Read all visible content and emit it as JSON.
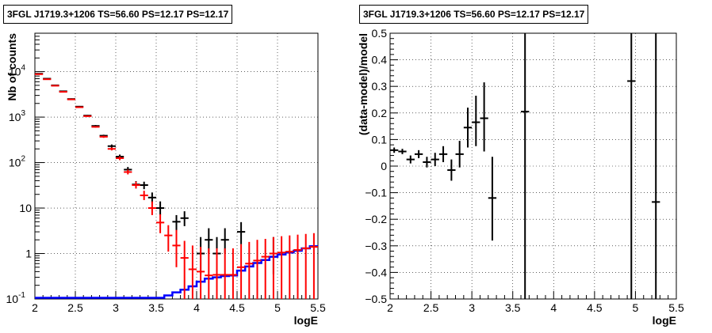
{
  "left_panel": {
    "title": "3FGL J1719.3+1206 TS=56.60 PS=12.17 PS=12.17"
  },
  "right_panel": {
    "title": "3FGL J1719.3+1206 TS=56.60 PS=12.17 PS=12.17"
  },
  "chart_data": [
    {
      "type": "scatter",
      "xlabel": "logE",
      "ylabel": "Nb of counts",
      "xlim": [
        2,
        5.5
      ],
      "ylim": [
        0.1,
        70000
      ],
      "yscale": "log",
      "grid": true,
      "xticks": [
        "2",
        "2.5",
        "3",
        "3.5",
        "4",
        "4.5",
        "5",
        "5.5"
      ],
      "yticks": [
        {
          "v": 0.1,
          "base": "10",
          "exp": "-1"
        },
        {
          "v": 1,
          "base": "1",
          "exp": ""
        },
        {
          "v": 10,
          "base": "10",
          "exp": ""
        },
        {
          "v": 100,
          "base": "10",
          "exp": "2"
        },
        {
          "v": 1000,
          "base": "10",
          "exp": "3"
        },
        {
          "v": 10000,
          "base": "10",
          "exp": "4"
        }
      ],
      "bin_width": 0.1,
      "series": [
        {
          "color": "#000000",
          "points": [
            {
              "x": 2.05,
              "y": 9000,
              "lo": 8800,
              "hi": 9200
            },
            {
              "x": 2.15,
              "y": 7000,
              "lo": 6850,
              "hi": 7150
            },
            {
              "x": 2.25,
              "y": 5000,
              "lo": 4880,
              "hi": 5120
            },
            {
              "x": 2.35,
              "y": 3700,
              "lo": 3600,
              "hi": 3800
            },
            {
              "x": 2.45,
              "y": 2500,
              "lo": 2420,
              "hi": 2580
            },
            {
              "x": 2.55,
              "y": 1700,
              "lo": 1640,
              "hi": 1760
            },
            {
              "x": 2.65,
              "y": 1080,
              "lo": 1040,
              "hi": 1120
            },
            {
              "x": 2.75,
              "y": 640,
              "lo": 610,
              "hi": 670
            },
            {
              "x": 2.85,
              "y": 390,
              "lo": 370,
              "hi": 410
            },
            {
              "x": 2.95,
              "y": 230,
              "lo": 210,
              "hi": 250
            },
            {
              "x": 3.05,
              "y": 135,
              "lo": 120,
              "hi": 150
            },
            {
              "x": 3.15,
              "y": 70,
              "lo": 62,
              "hi": 80
            },
            {
              "x": 3.25,
              "y": 33,
              "lo": 27,
              "hi": 39
            },
            {
              "x": 3.35,
              "y": 32,
              "lo": 26,
              "hi": 38
            },
            {
              "x": 3.45,
              "y": 17,
              "lo": 13,
              "hi": 22
            },
            {
              "x": 3.55,
              "y": 10,
              "lo": 7,
              "hi": 14
            },
            {
              "x": 3.75,
              "y": 5,
              "lo": 3,
              "hi": 7
            },
            {
              "x": 3.85,
              "y": 6,
              "lo": 4,
              "hi": 8.5
            },
            {
              "x": 4.05,
              "y": 1,
              "lo": 0.35,
              "hi": 2.3
            },
            {
              "x": 4.15,
              "y": 2,
              "lo": 1,
              "hi": 3.6
            },
            {
              "x": 4.25,
              "y": 1,
              "lo": 0.35,
              "hi": 2.3
            },
            {
              "x": 4.35,
              "y": 2,
              "lo": 1,
              "hi": 3.6
            },
            {
              "x": 4.55,
              "y": 3,
              "lo": 1.6,
              "hi": 4.9
            },
            {
              "x": 4.95,
              "y": 1,
              "lo": 0.35,
              "hi": 2.3
            }
          ]
        },
        {
          "color": "#ff0000",
          "points": [
            {
              "x": 2.05,
              "y": 8800,
              "lo": 8600,
              "hi": 9000
            },
            {
              "x": 2.15,
              "y": 6800,
              "lo": 6650,
              "hi": 6950
            },
            {
              "x": 2.25,
              "y": 4900,
              "lo": 4780,
              "hi": 5020
            },
            {
              "x": 2.35,
              "y": 3600,
              "lo": 3500,
              "hi": 3700
            },
            {
              "x": 2.45,
              "y": 2450,
              "lo": 2380,
              "hi": 2520
            },
            {
              "x": 2.55,
              "y": 1650,
              "lo": 1600,
              "hi": 1700
            },
            {
              "x": 2.65,
              "y": 1050,
              "lo": 1010,
              "hi": 1090
            },
            {
              "x": 2.75,
              "y": 610,
              "lo": 585,
              "hi": 635
            },
            {
              "x": 2.85,
              "y": 370,
              "lo": 350,
              "hi": 390
            },
            {
              "x": 2.95,
              "y": 200,
              "lo": 185,
              "hi": 215
            },
            {
              "x": 3.05,
              "y": 125,
              "lo": 113,
              "hi": 137
            },
            {
              "x": 3.15,
              "y": 62,
              "lo": 55,
              "hi": 70
            },
            {
              "x": 3.25,
              "y": 32,
              "lo": 27,
              "hi": 38
            },
            {
              "x": 3.35,
              "y": 19,
              "lo": 15,
              "hi": 24
            },
            {
              "x": 3.45,
              "y": 10,
              "lo": 7,
              "hi": 14
            },
            {
              "x": 3.55,
              "y": 4.8,
              "lo": 2.8,
              "hi": 7.3
            },
            {
              "x": 3.65,
              "y": 2.5,
              "lo": 1.1,
              "hi": 4.2
            },
            {
              "x": 3.75,
              "y": 1.5,
              "lo": 0.5,
              "hi": 3.3
            },
            {
              "x": 3.85,
              "y": 0.8,
              "lo": 0.1,
              "hi": 1.9
            },
            {
              "x": 3.95,
              "y": 0.45,
              "lo": 0.1,
              "hi": 1.5
            },
            {
              "x": 4.05,
              "y": 0.4,
              "lo": 0.1,
              "hi": 1.4
            },
            {
              "x": 4.15,
              "y": 0.33,
              "lo": 0.1,
              "hi": 1.3
            },
            {
              "x": 4.25,
              "y": 0.34,
              "lo": 0.1,
              "hi": 1.3
            },
            {
              "x": 4.35,
              "y": 0.34,
              "lo": 0.1,
              "hi": 1.3
            },
            {
              "x": 4.45,
              "y": 0.34,
              "lo": 0.1,
              "hi": 1.3
            },
            {
              "x": 4.55,
              "y": 0.5,
              "lo": 0.1,
              "hi": 1.6
            },
            {
              "x": 4.65,
              "y": 0.6,
              "lo": 0.1,
              "hi": 1.8
            },
            {
              "x": 4.75,
              "y": 0.7,
              "lo": 0.1,
              "hi": 2.0
            },
            {
              "x": 4.85,
              "y": 0.85,
              "lo": 0.1,
              "hi": 2.1
            },
            {
              "x": 4.95,
              "y": 1.0,
              "lo": 0.1,
              "hi": 2.3
            },
            {
              "x": 5.05,
              "y": 1.05,
              "lo": 0.1,
              "hi": 2.4
            },
            {
              "x": 5.15,
              "y": 1.1,
              "lo": 0.1,
              "hi": 2.5
            },
            {
              "x": 5.25,
              "y": 1.2,
              "lo": 0.1,
              "hi": 2.6
            },
            {
              "x": 5.35,
              "y": 1.3,
              "lo": 0.1,
              "hi": 2.7
            },
            {
              "x": 5.45,
              "y": 1.4,
              "lo": 0.1,
              "hi": 2.8
            }
          ]
        },
        {
          "color": "#0000ff",
          "style": "step",
          "floor": 0.1,
          "edges": [
            2.0,
            2.1,
            2.2,
            2.3,
            2.4,
            2.5,
            2.6,
            2.7,
            2.8,
            2.9,
            3.0,
            3.1,
            3.2,
            3.3,
            3.4,
            3.5,
            3.6,
            3.7,
            3.8,
            3.9,
            4.0,
            4.1,
            4.2,
            4.3,
            4.4,
            4.5,
            4.6,
            4.7,
            4.8,
            4.9,
            5.0,
            5.1,
            5.2,
            5.3,
            5.4,
            5.5
          ],
          "values": [
            0.1,
            0.1,
            0.1,
            0.1,
            0.1,
            0.1,
            0.1,
            0.1,
            0.1,
            0.1,
            0.1,
            0.1,
            0.1,
            0.1,
            0.1,
            0.1,
            0.12,
            0.14,
            0.16,
            0.19,
            0.24,
            0.28,
            0.3,
            0.32,
            0.33,
            0.42,
            0.52,
            0.62,
            0.72,
            0.85,
            0.95,
            1.05,
            1.15,
            1.3,
            1.45
          ]
        }
      ]
    },
    {
      "type": "scatter",
      "xlabel": "logE",
      "ylabel": "(data-model)/model",
      "xlim": [
        2,
        5.5
      ],
      "ylim": [
        -0.5,
        0.5
      ],
      "yscale": "linear",
      "grid": true,
      "xticks": [
        "2",
        "2.5",
        "3",
        "3.5",
        "4",
        "4.5",
        "5",
        "5.5"
      ],
      "yticks": [
        "−0.5",
        "−0.4",
        "−0.3",
        "−0.2",
        "−0.1",
        "0",
        "0.1",
        "0.2",
        "0.3",
        "0.4",
        "0.5"
      ],
      "bin_width": 0.1,
      "series": [
        {
          "color": "#000000",
          "points": [
            {
              "x": 2.05,
              "y": 0.06,
              "lo": 0.05,
              "hi": 0.07
            },
            {
              "x": 2.15,
              "y": 0.055,
              "lo": 0.045,
              "hi": 0.065
            },
            {
              "x": 2.25,
              "y": 0.025,
              "lo": 0.01,
              "hi": 0.04
            },
            {
              "x": 2.35,
              "y": 0.045,
              "lo": 0.03,
              "hi": 0.06
            },
            {
              "x": 2.45,
              "y": 0.015,
              "lo": -0.005,
              "hi": 0.035
            },
            {
              "x": 2.55,
              "y": 0.025,
              "lo": 0.0,
              "hi": 0.05
            },
            {
              "x": 2.65,
              "y": 0.045,
              "lo": 0.015,
              "hi": 0.075
            },
            {
              "x": 2.75,
              "y": -0.015,
              "lo": -0.055,
              "hi": 0.025
            },
            {
              "x": 2.85,
              "y": 0.045,
              "lo": -0.005,
              "hi": 0.095
            },
            {
              "x": 2.95,
              "y": 0.145,
              "lo": 0.07,
              "hi": 0.22
            },
            {
              "x": 3.05,
              "y": 0.165,
              "lo": 0.075,
              "hi": 0.265
            },
            {
              "x": 3.15,
              "y": 0.18,
              "lo": 0.055,
              "hi": 0.315
            },
            {
              "x": 3.25,
              "y": -0.12,
              "lo": -0.28,
              "hi": 0.035
            },
            {
              "x": 3.65,
              "y": 0.205,
              "lo": -0.5,
              "hi": 0.5
            },
            {
              "x": 4.95,
              "y": 0.32,
              "lo": -0.5,
              "hi": 0.5
            },
            {
              "x": 5.25,
              "y": -0.135,
              "lo": -0.5,
              "hi": 0.5
            }
          ]
        }
      ]
    }
  ]
}
